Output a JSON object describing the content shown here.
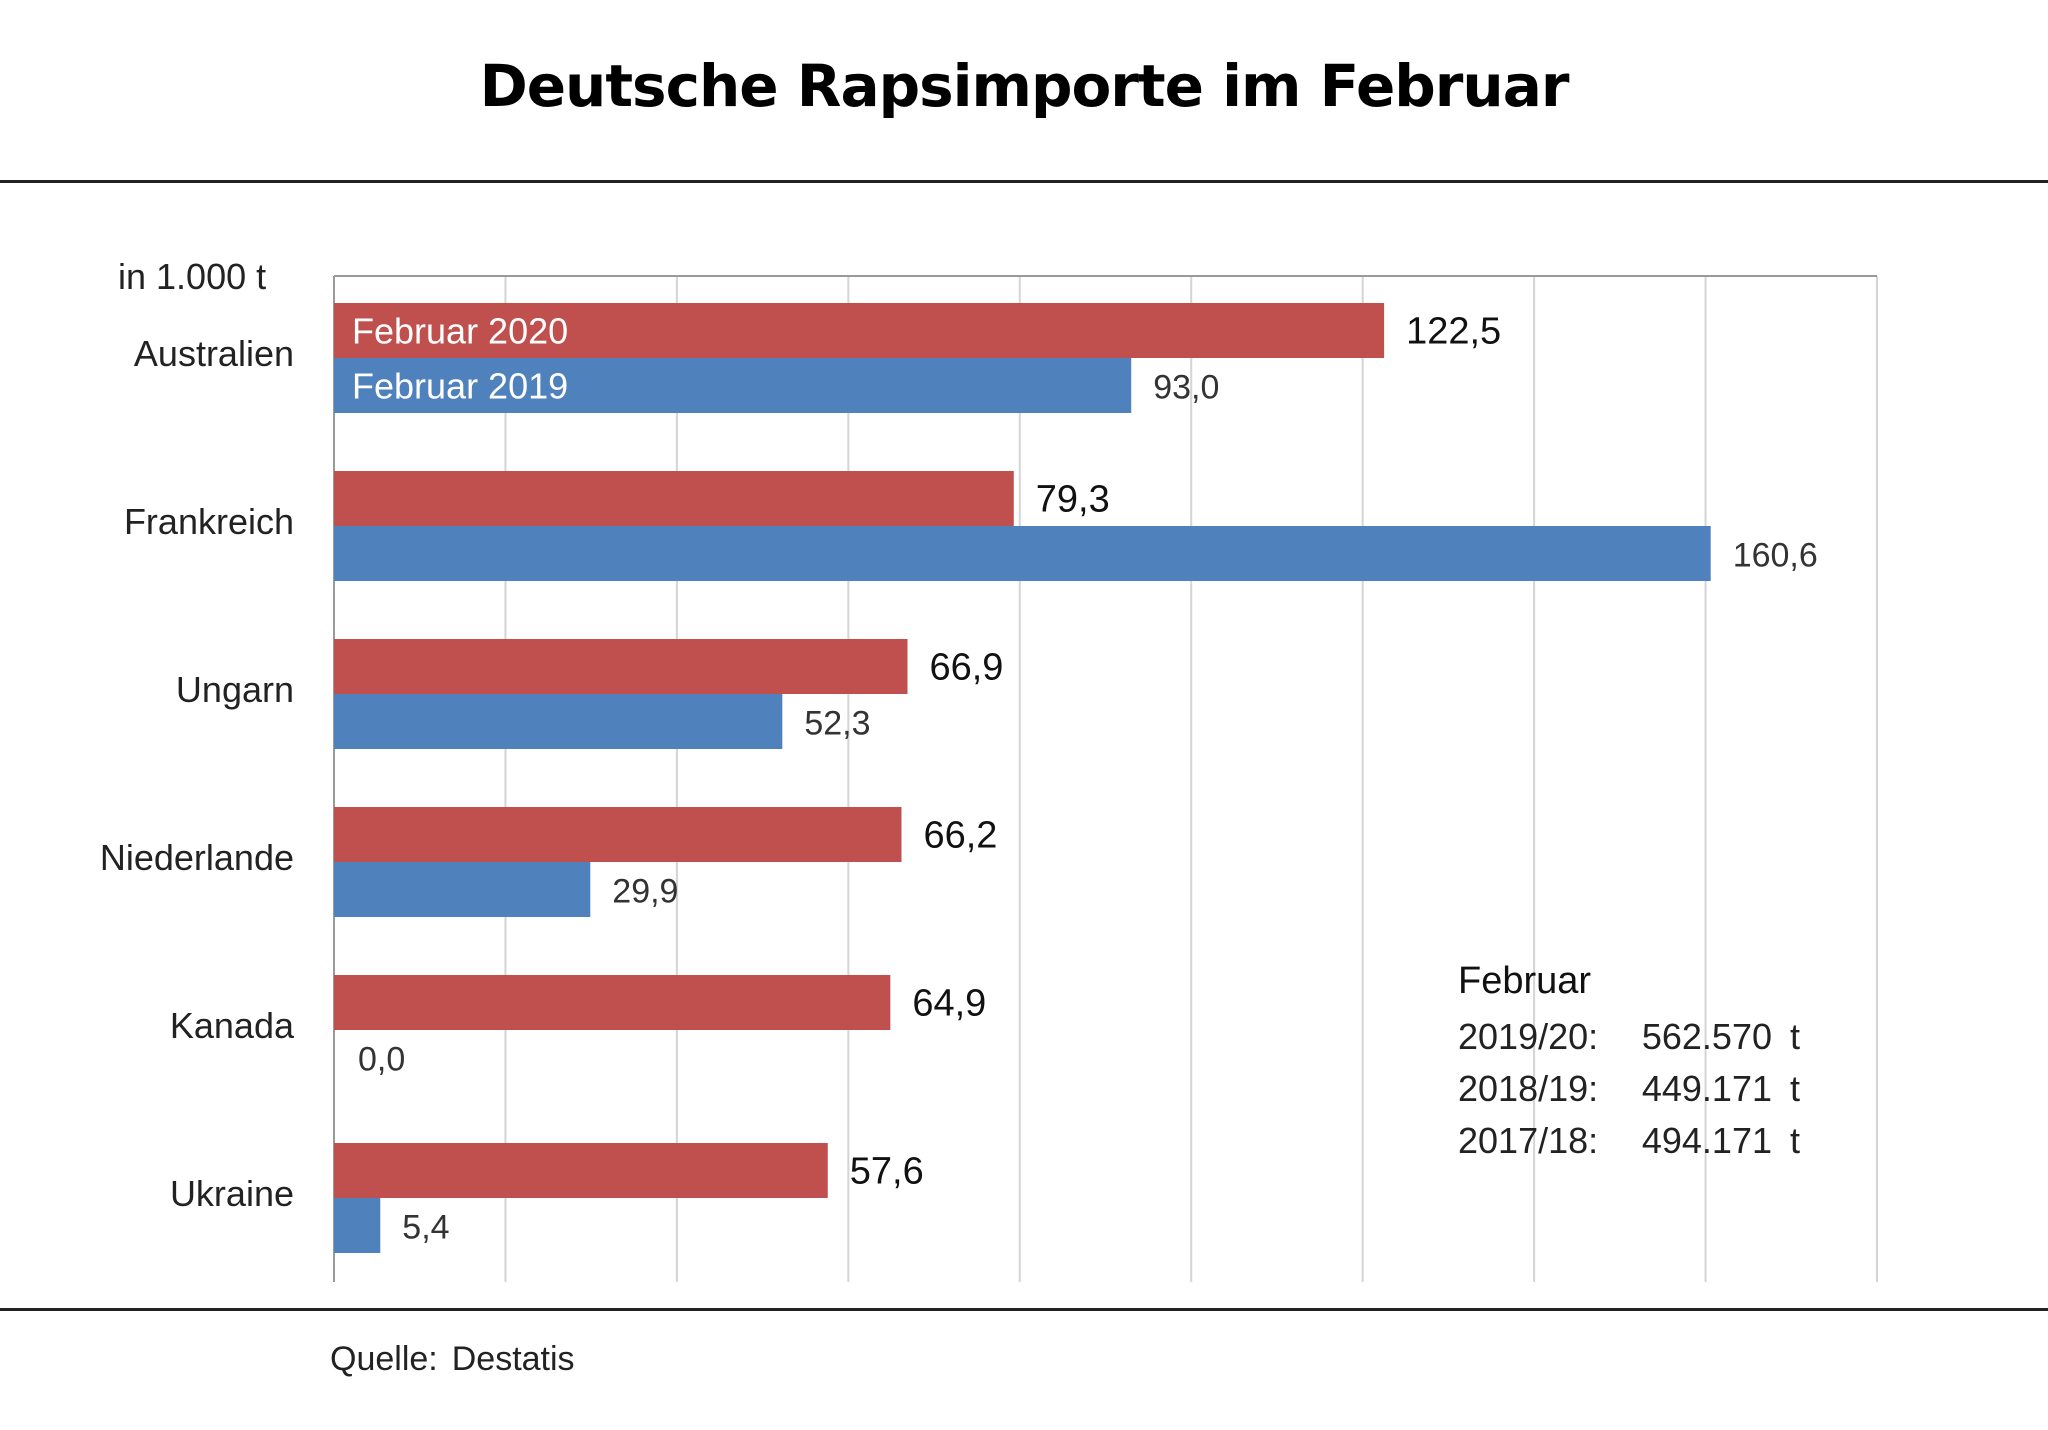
{
  "chart_data": {
    "type": "bar",
    "orientation": "horizontal",
    "title": "Deutsche Rapsimporte im Februar",
    "unit_label": "in 1.000  t",
    "categories": [
      "Australien",
      "Frankreich",
      "Ungarn",
      "Niederlande",
      "Kanada",
      "Ukraine"
    ],
    "series": [
      {
        "name": "Februar 2020",
        "color": "#C0504D",
        "values": [
          122.5,
          79.3,
          66.9,
          66.2,
          64.9,
          57.6
        ],
        "labels": [
          "122,5",
          "79,3",
          "66,9",
          "66,2",
          "64,9",
          "57,6"
        ]
      },
      {
        "name": "Februar 2019",
        "color": "#4F81BD",
        "values": [
          93.0,
          160.6,
          52.3,
          29.9,
          0.0,
          5.4
        ],
        "labels": [
          "93,0",
          "160,6",
          "52,3",
          "29,9",
          "0,0",
          "5,4"
        ]
      }
    ],
    "xlim": [
      0,
      180
    ],
    "grid": true,
    "legend": "inside-first-bars"
  },
  "totals": {
    "heading": "Februar",
    "rows": [
      {
        "year": "2019/20:",
        "value": "562.570",
        "unit": "t"
      },
      {
        "year": "2018/19:",
        "value": "449.171",
        "unit": "t"
      },
      {
        "year": "2017/18:",
        "value": "494.171",
        "unit": "t"
      }
    ]
  },
  "source": {
    "label": "Quelle:",
    "name": "Destatis"
  }
}
